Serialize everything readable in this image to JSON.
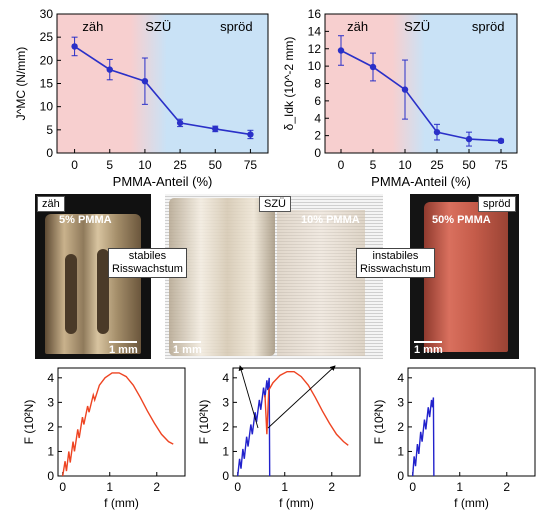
{
  "chart_data": [
    {
      "type": "line",
      "ylabel": "J^MC (N/mm)",
      "xlabel": "PMMA-Anteil (%)",
      "categories": [
        "0",
        "5",
        "10",
        "25",
        "50",
        "75"
      ],
      "ylim": [
        0,
        30
      ],
      "yticks": [
        0,
        5,
        10,
        15,
        20,
        25,
        30
      ],
      "regions": [
        "zäh",
        "SZÜ",
        "spröd"
      ],
      "points": [
        {
          "x": "0",
          "y": 23.0,
          "err": 2.0
        },
        {
          "x": "5",
          "y": 18.0,
          "err": 2.2
        },
        {
          "x": "10",
          "y": 15.5,
          "err": 5.0
        },
        {
          "x": "25",
          "y": 6.5,
          "err": 0.8
        },
        {
          "x": "50",
          "y": 5.2,
          "err": 0.6
        },
        {
          "x": "75",
          "y": 4.0,
          "err": 0.9
        }
      ]
    },
    {
      "type": "line",
      "ylabel": "δ_Idk (10^-2 mm)",
      "xlabel": "PMMA-Anteil (%)",
      "categories": [
        "0",
        "5",
        "10",
        "25",
        "50",
        "75"
      ],
      "ylim": [
        0,
        16
      ],
      "yticks": [
        0,
        2,
        4,
        6,
        8,
        10,
        12,
        14,
        16
      ],
      "regions": [
        "zäh",
        "SZÜ",
        "spröd"
      ],
      "points": [
        {
          "x": "0",
          "y": 11.8,
          "err": 1.7
        },
        {
          "x": "5",
          "y": 9.9,
          "err": 1.6
        },
        {
          "x": "10",
          "y": 7.3,
          "err": 3.4
        },
        {
          "x": "25",
          "y": 2.4,
          "err": 0.9
        },
        {
          "x": "50",
          "y": 1.6,
          "err": 0.8
        },
        {
          "x": "75",
          "y": 1.4,
          "err": 0.2
        }
      ]
    },
    {
      "type": "line",
      "ylabel": "F (10²N)",
      "xlabel": "f (mm)",
      "xticks": [
        0,
        1,
        2
      ],
      "yticks": [
        0,
        1,
        2,
        3,
        4
      ],
      "xlim": [
        -0.1,
        2.6
      ],
      "ylim": [
        0,
        4.4
      ],
      "series": [
        {
          "color": "#ee4422",
          "points": [
            [
              0,
              0
            ],
            [
              0.05,
              0.6
            ],
            [
              0.08,
              0.2
            ],
            [
              0.13,
              1.0
            ],
            [
              0.16,
              0.55
            ],
            [
              0.22,
              1.4
            ],
            [
              0.25,
              1.0
            ],
            [
              0.32,
              1.9
            ],
            [
              0.35,
              1.55
            ],
            [
              0.42,
              2.4
            ],
            [
              0.45,
              2.1
            ],
            [
              0.53,
              2.85
            ],
            [
              0.56,
              2.6
            ],
            [
              0.65,
              3.3
            ],
            [
              0.68,
              3.1
            ],
            [
              0.78,
              3.7
            ],
            [
              0.9,
              4.0
            ],
            [
              1.05,
              4.2
            ],
            [
              1.2,
              4.2
            ],
            [
              1.35,
              4.05
            ],
            [
              1.5,
              3.7
            ],
            [
              1.65,
              3.2
            ],
            [
              1.8,
              2.65
            ],
            [
              1.95,
              2.15
            ],
            [
              2.1,
              1.7
            ],
            [
              2.25,
              1.4
            ],
            [
              2.35,
              1.3
            ]
          ]
        }
      ]
    },
    {
      "type": "line",
      "ylabel": "F (10²N)",
      "xlabel": "f (mm)",
      "xticks": [
        0,
        1,
        2
      ],
      "yticks": [
        0,
        1,
        2,
        3,
        4
      ],
      "xlim": [
        -0.1,
        2.6
      ],
      "ylim": [
        0,
        4.4
      ],
      "series": [
        {
          "color": "#2222cc",
          "points": [
            [
              0,
              0
            ],
            [
              0.04,
              0.7
            ],
            [
              0.07,
              0.3
            ],
            [
              0.11,
              1.1
            ],
            [
              0.14,
              0.7
            ],
            [
              0.19,
              1.6
            ],
            [
              0.22,
              1.2
            ],
            [
              0.28,
              2.1
            ],
            [
              0.31,
              1.7
            ],
            [
              0.37,
              2.6
            ],
            [
              0.4,
              2.2
            ],
            [
              0.46,
              3.1
            ],
            [
              0.49,
              2.7
            ],
            [
              0.55,
              3.6
            ],
            [
              0.58,
              3.2
            ],
            [
              0.62,
              3.9
            ],
            [
              0.64,
              3.5
            ],
            [
              0.67,
              4.0
            ],
            [
              0.68,
              0
            ]
          ]
        },
        {
          "color": "#ee4422",
          "points": [
            [
              0.58,
              3.3
            ],
            [
              0.62,
              1.7
            ],
            [
              0.66,
              3.5
            ],
            [
              0.75,
              3.8
            ],
            [
              0.9,
              4.1
            ],
            [
              1.05,
              4.25
            ],
            [
              1.2,
              4.25
            ],
            [
              1.35,
              4.05
            ],
            [
              1.5,
              3.7
            ],
            [
              1.65,
              3.2
            ],
            [
              1.8,
              2.65
            ],
            [
              1.95,
              2.15
            ],
            [
              2.1,
              1.7
            ],
            [
              2.25,
              1.4
            ],
            [
              2.35,
              1.25
            ]
          ]
        }
      ]
    },
    {
      "type": "line",
      "ylabel": "F (10²N)",
      "xlabel": "f (mm)",
      "xticks": [
        0,
        1,
        2
      ],
      "yticks": [
        0,
        1,
        2,
        3,
        4
      ],
      "xlim": [
        -0.1,
        2.6
      ],
      "ylim": [
        0,
        4.4
      ],
      "series": [
        {
          "color": "#2222cc",
          "points": [
            [
              0,
              0
            ],
            [
              0.03,
              0.8
            ],
            [
              0.06,
              0.4
            ],
            [
              0.1,
              1.3
            ],
            [
              0.13,
              0.9
            ],
            [
              0.17,
              1.8
            ],
            [
              0.2,
              1.4
            ],
            [
              0.25,
              2.3
            ],
            [
              0.28,
              1.9
            ],
            [
              0.33,
              2.8
            ],
            [
              0.36,
              2.4
            ],
            [
              0.4,
              3.1
            ],
            [
              0.42,
              2.8
            ],
            [
              0.44,
              3.2
            ],
            [
              0.45,
              0
            ]
          ]
        }
      ]
    }
  ],
  "photos": {
    "zaeh": {
      "tag": "zäh",
      "pct": "5% PMMA",
      "scale": "1 mm"
    },
    "szue": {
      "tag": "SZÜ",
      "pct": "10% PMMA",
      "scale": "1 mm"
    },
    "sproed": {
      "tag": "spröd",
      "pct": "50% PMMA",
      "scale": "1 mm"
    },
    "callout_left": [
      "stabiles",
      "Risswachstum"
    ],
    "callout_right": [
      "instabiles",
      "Risswachstum"
    ]
  },
  "colors": {
    "red": "#ee4422",
    "blue": "#2222cc",
    "line": "#2a30c8",
    "tough_bg": "#f7cfcf",
    "brittle_bg": "#c9e2f6"
  }
}
